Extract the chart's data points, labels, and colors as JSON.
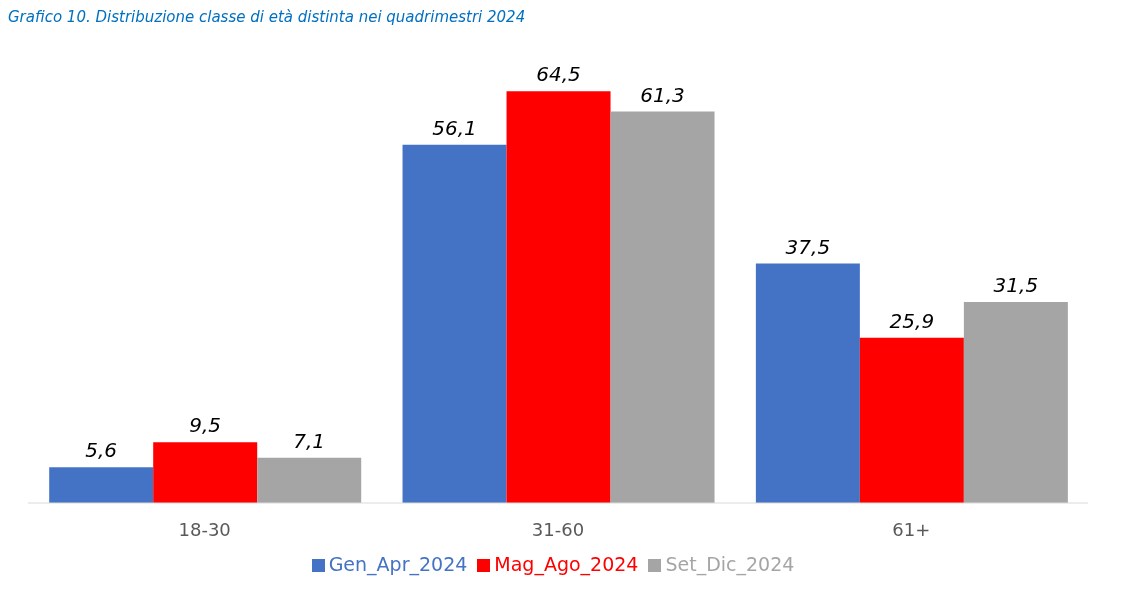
{
  "chart_data": {
    "type": "bar",
    "title": "Grafico 10. Distribuzione classe di età distinta nei quadrimestri 2024",
    "categories": [
      "18-30",
      "31-60",
      "61+"
    ],
    "series": [
      {
        "name": "Gen_Apr_2024",
        "color": "#4472c4",
        "values": [
          5.6,
          56.1,
          37.5
        ],
        "value_labels": [
          "5,6",
          "56,1",
          "37,5"
        ]
      },
      {
        "name": "Mag_Ago_2024",
        "color": "#ff0000",
        "values": [
          9.5,
          64.5,
          25.9
        ],
        "value_labels": [
          "9,5",
          "64,5",
          "25,9"
        ]
      },
      {
        "name": "Set_Dic_2024",
        "color": "#a5a5a5",
        "values": [
          7.1,
          61.3,
          31.5
        ],
        "value_labels": [
          "7,1",
          "61,3",
          "31,5"
        ]
      }
    ],
    "legend": "bottom",
    "grid": false
  }
}
